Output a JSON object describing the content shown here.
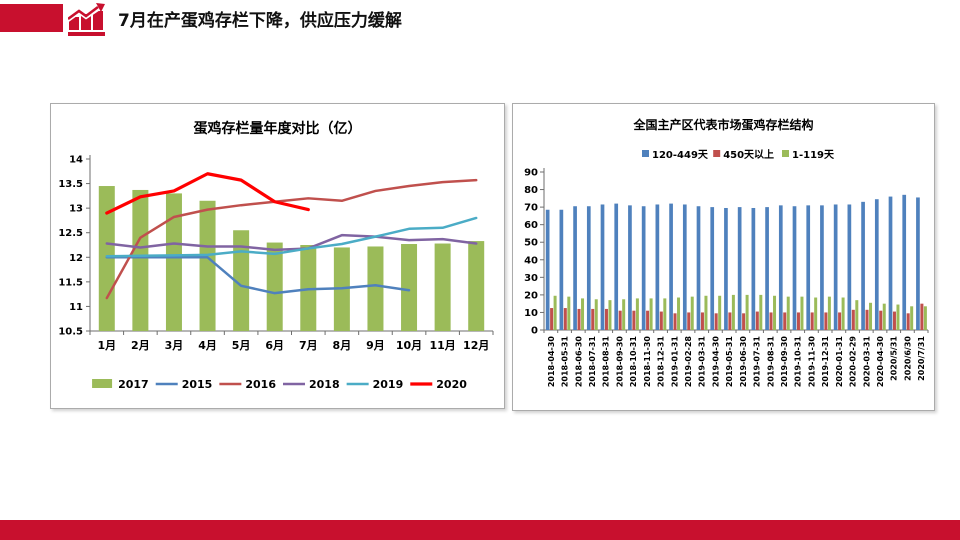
{
  "header": {
    "title": "7月在产蛋鸡存栏下降，供应压力缓解",
    "accent_color": "#C8102E",
    "icon": "bar-chart-arrow-icon"
  },
  "footer": {
    "bar_color": "#C8102E"
  },
  "chart_data": [
    {
      "type": "bar+line",
      "title": "蛋鸡存栏量年度对比（亿）",
      "categories": [
        "1月",
        "2月",
        "3月",
        "4月",
        "5月",
        "6月",
        "7月",
        "8月",
        "9月",
        "10月",
        "11月",
        "12月"
      ],
      "ylim": [
        10.5,
        14
      ],
      "yticks": [
        "14",
        "13.5",
        "13",
        "12.5",
        "12",
        "11.5",
        "11",
        "10.5"
      ],
      "grid": false,
      "legend_position": "bottom",
      "bar_series": {
        "name": "2017",
        "color": "#9BBB59",
        "values": [
          13.45,
          13.37,
          13.3,
          13.15,
          12.55,
          12.3,
          12.25,
          12.2,
          12.22,
          12.27,
          12.28,
          12.33
        ]
      },
      "line_series": [
        {
          "name": "2015",
          "color": "#4F81BD",
          "width": 2.5,
          "values": [
            12.0,
            12.0,
            12.0,
            12.0,
            11.42,
            11.27,
            11.35,
            11.37,
            11.43,
            11.33,
            null,
            null
          ]
        },
        {
          "name": "2016",
          "color": "#C0504D",
          "width": 2.5,
          "values": [
            11.17,
            12.4,
            12.82,
            12.97,
            13.06,
            13.13,
            13.2,
            13.15,
            13.35,
            13.45,
            13.53,
            13.57
          ]
        },
        {
          "name": "2018",
          "color": "#8064A2",
          "width": 2.5,
          "values": [
            12.28,
            12.2,
            12.28,
            12.22,
            12.22,
            12.15,
            12.18,
            12.45,
            12.42,
            12.35,
            12.37,
            12.28
          ]
        },
        {
          "name": "2019",
          "color": "#4BACC6",
          "width": 2.5,
          "values": [
            12.02,
            12.03,
            12.04,
            12.05,
            12.12,
            12.07,
            12.18,
            12.27,
            12.42,
            12.58,
            12.6,
            12.8
          ]
        },
        {
          "name": "2020",
          "color": "#FF0000",
          "width": 3.2,
          "values": [
            12.9,
            13.23,
            13.35,
            13.7,
            13.57,
            13.13,
            12.97,
            null,
            null,
            null,
            null,
            null
          ]
        }
      ],
      "legend_order": [
        "2017",
        "2015",
        "2016",
        "2018",
        "2019",
        "2020"
      ]
    },
    {
      "type": "bar",
      "title": "全国主产区代表市场蛋鸡存栏结构",
      "categories": [
        "2018-04-30",
        "2018-05-31",
        "2018-06-30",
        "2018-07-31",
        "2018-08-31",
        "2018-09-30",
        "2018-10-31",
        "2018-11-30",
        "2018-12-31",
        "2019-01-31",
        "2019-02-28",
        "2019-03-31",
        "2019-04-30",
        "2019-05-31",
        "2019-06-30",
        "2019-07-31",
        "2019-08-31",
        "2019-09-30",
        "2019-10-31",
        "2019-11-30",
        "2019-12-31",
        "2020-01-31",
        "2020-02-29",
        "2020-03-31",
        "2020-04-30",
        "2020/5/31",
        "2020/6/30",
        "2020/7/31"
      ],
      "ylim": [
        0,
        90
      ],
      "yticks": [
        "90",
        "80",
        "70",
        "60",
        "50",
        "40",
        "30",
        "20",
        "10",
        "0"
      ],
      "grid": false,
      "legend_position": "top",
      "series": [
        {
          "name": "120-449天",
          "color": "#4F81BD",
          "values": [
            68.5,
            68.5,
            70.5,
            70.5,
            71.5,
            72,
            71,
            70.5,
            71.5,
            72,
            71.5,
            70.5,
            70,
            69.5,
            70,
            69.5,
            70,
            71,
            70.5,
            71,
            71,
            71.5,
            71.5,
            73,
            74.5,
            76,
            77,
            75.5
          ]
        },
        {
          "name": "450天以上",
          "color": "#C0504D",
          "values": [
            12.5,
            12.5,
            12,
            12,
            12,
            11,
            11,
            11,
            10.5,
            9.5,
            10,
            10,
            9.5,
            10,
            9.5,
            10.5,
            10,
            10,
            10,
            10,
            10,
            10,
            11.5,
            11.5,
            11,
            10.5,
            9.5,
            15
          ]
        },
        {
          "name": "1-119天",
          "color": "#9BBB59",
          "values": [
            19.5,
            19,
            18,
            17.5,
            17,
            17.5,
            18,
            18,
            18,
            18.5,
            19,
            19.5,
            19.5,
            20,
            20,
            20,
            19.5,
            19,
            19,
            18.5,
            19,
            18.5,
            17,
            15.5,
            15,
            14.5,
            13.5,
            13.5
          ]
        }
      ]
    }
  ]
}
